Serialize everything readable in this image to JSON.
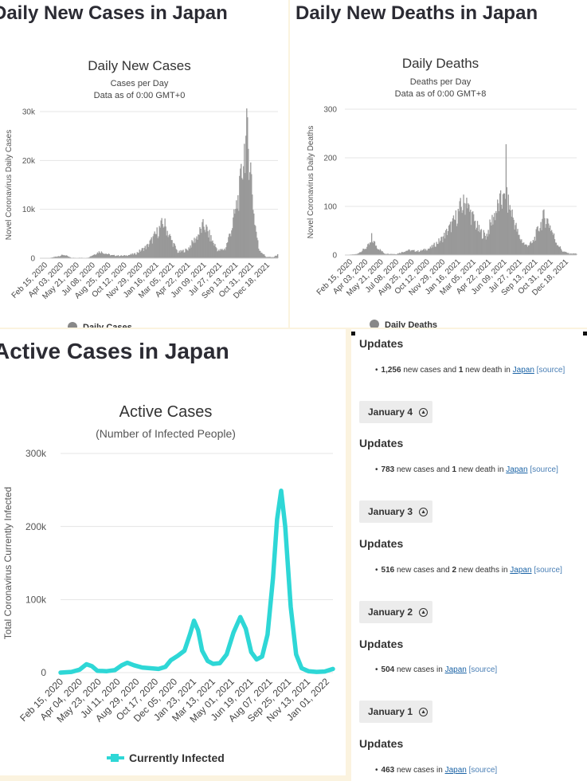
{
  "panels": {
    "cases": {
      "section_title": "Daily New Cases in Japan"
    },
    "deaths": {
      "section_title": "Daily New Deaths in Japan"
    },
    "active": {
      "section_title": "Active Cases in Japan"
    }
  },
  "chart_data": [
    {
      "id": "daily-cases",
      "type": "bar",
      "title": "Daily New Cases",
      "subtitle": [
        "Cases per Day",
        "Data as of 0:00 GMT+0"
      ],
      "ylabel": "Novel Coronavirus Daily Cases",
      "ylim": [
        0,
        30000
      ],
      "y_ticks": [
        "0",
        "10k",
        "20k",
        "30k"
      ],
      "y_tick_values": [
        0,
        10000,
        20000,
        30000
      ],
      "x_ticks": [
        "Feb 15, 2020",
        "Apr 03, 2020",
        "May 21, 2020",
        "Jul 08, 2020",
        "Aug 25, 2020",
        "Oct 12, 2020",
        "Nov 29, 2020",
        "Jan 16, 2021",
        "Mar 05, 2021",
        "Apr 22, 2021",
        "Jun 09, 2021",
        "Jul 27, 2021",
        "Sep 13, 2021",
        "Oct 31, 2021",
        "Dec 18, 2021"
      ],
      "legend": "Daily Cases",
      "color": "#999999",
      "grid": true,
      "anchors": [
        [
          0,
          0
        ],
        [
          0.04,
          50
        ],
        [
          0.1,
          700
        ],
        [
          0.13,
          100
        ],
        [
          0.2,
          100
        ],
        [
          0.25,
          1400
        ],
        [
          0.3,
          600
        ],
        [
          0.35,
          500
        ],
        [
          0.4,
          900
        ],
        [
          0.45,
          2500
        ],
        [
          0.48,
          4500
        ],
        [
          0.52,
          7500
        ],
        [
          0.55,
          4000
        ],
        [
          0.58,
          1200
        ],
        [
          0.62,
          1800
        ],
        [
          0.66,
          4500
        ],
        [
          0.69,
          7000
        ],
        [
          0.72,
          4000
        ],
        [
          0.75,
          1500
        ],
        [
          0.78,
          2000
        ],
        [
          0.81,
          7000
        ],
        [
          0.84,
          14000
        ],
        [
          0.86,
          23000
        ],
        [
          0.87,
          25500
        ],
        [
          0.885,
          20000
        ],
        [
          0.9,
          9000
        ],
        [
          0.92,
          2000
        ],
        [
          0.95,
          300
        ],
        [
          0.98,
          200
        ],
        [
          1,
          700
        ]
      ]
    },
    {
      "id": "daily-deaths",
      "type": "bar",
      "title": "Daily Deaths",
      "subtitle": [
        "Deaths per Day",
        "Data as of 0:00 GMT+8"
      ],
      "ylabel": "Novel Coronavirus Daily Deaths",
      "ylim": [
        0,
        300
      ],
      "y_ticks": [
        "0",
        "100",
        "200",
        "300"
      ],
      "y_tick_values": [
        0,
        100,
        200,
        300
      ],
      "x_ticks": [
        "Feb 15, 2020",
        "Apr 03, 2020",
        "May 21, 2020",
        "Jul 08, 2020",
        "Aug 25, 2020",
        "Oct 12, 2020",
        "Nov 29, 2020",
        "Jan 16, 2021",
        "Mar 05, 2021",
        "Apr 22, 2021",
        "Jun 09, 2021",
        "Jul 27, 2021",
        "Sep 13, 2021",
        "Oct 31, 2021",
        "Dec 18, 2021"
      ],
      "legend": "Daily Deaths",
      "color": "#999999",
      "grid": true,
      "anchors": [
        [
          0,
          0
        ],
        [
          0.05,
          2
        ],
        [
          0.09,
          15
        ],
        [
          0.12,
          30
        ],
        [
          0.14,
          15
        ],
        [
          0.17,
          3
        ],
        [
          0.22,
          2
        ],
        [
          0.27,
          10
        ],
        [
          0.32,
          8
        ],
        [
          0.37,
          15
        ],
        [
          0.42,
          35
        ],
        [
          0.47,
          70
        ],
        [
          0.5,
          100
        ],
        [
          0.52,
          110
        ],
        [
          0.55,
          80
        ],
        [
          0.58,
          50
        ],
        [
          0.61,
          40
        ],
        [
          0.64,
          80
        ],
        [
          0.67,
          110
        ],
        [
          0.7,
          115
        ],
        [
          0.72,
          90
        ],
        [
          0.75,
          40
        ],
        [
          0.78,
          20
        ],
        [
          0.81,
          25
        ],
        [
          0.84,
          60
        ],
        [
          0.86,
          80
        ],
        [
          0.88,
          70
        ],
        [
          0.91,
          30
        ],
        [
          0.94,
          8
        ],
        [
          0.97,
          3
        ],
        [
          1,
          3
        ]
      ],
      "spikes": [
        [
          0.695,
          228
        ],
        [
          0.682,
          125
        ],
        [
          0.525,
          118
        ],
        [
          0.115,
          45
        ]
      ]
    },
    {
      "id": "active-cases",
      "type": "line",
      "title": "Active Cases",
      "subtitle": [
        "(Number of Infected People)"
      ],
      "ylabel": "Total Coronavirus Currently Infected",
      "ylim": [
        0,
        300000
      ],
      "y_ticks": [
        "0",
        "100k",
        "200k",
        "300k"
      ],
      "y_tick_values": [
        0,
        100000,
        200000,
        300000
      ],
      "x_ticks": [
        "Feb 15, 2020",
        "Apr 04, 2020",
        "May 23, 2020",
        "Jul 11, 2020",
        "Aug 29, 2020",
        "Oct 17, 2020",
        "Dec 05, 2020",
        "Jan 23, 2021",
        "Mar 13, 2021",
        "May 01, 2021",
        "Jun 19, 2021",
        "Aug 07, 2021",
        "Sep 25, 2021",
        "Nov 13, 2021",
        "Jan 01, 2022"
      ],
      "legend": "Currently Infected",
      "color": "#2ed7d6",
      "grid": true,
      "series": [
        {
          "name": "Currently Infected",
          "points": [
            [
              0.0,
              0
            ],
            [
              0.04,
              1000
            ],
            [
              0.07,
              4000
            ],
            [
              0.095,
              11500
            ],
            [
              0.115,
              9000
            ],
            [
              0.135,
              2500
            ],
            [
              0.17,
              2000
            ],
            [
              0.2,
              3500
            ],
            [
              0.225,
              10000
            ],
            [
              0.245,
              13500
            ],
            [
              0.27,
              10000
            ],
            [
              0.3,
              7000
            ],
            [
              0.33,
              6000
            ],
            [
              0.36,
              5000
            ],
            [
              0.385,
              8000
            ],
            [
              0.405,
              17000
            ],
            [
              0.43,
              23000
            ],
            [
              0.455,
              30000
            ],
            [
              0.475,
              52000
            ],
            [
              0.49,
              71000
            ],
            [
              0.505,
              58000
            ],
            [
              0.52,
              30000
            ],
            [
              0.54,
              16000
            ],
            [
              0.56,
              12000
            ],
            [
              0.585,
              13000
            ],
            [
              0.61,
              25000
            ],
            [
              0.635,
              55000
            ],
            [
              0.66,
              76000
            ],
            [
              0.68,
              60000
            ],
            [
              0.7,
              28000
            ],
            [
              0.72,
              18000
            ],
            [
              0.74,
              22000
            ],
            [
              0.76,
              52000
            ],
            [
              0.78,
              130000
            ],
            [
              0.795,
              210000
            ],
            [
              0.81,
              249000
            ],
            [
              0.825,
              200000
            ],
            [
              0.845,
              90000
            ],
            [
              0.865,
              25000
            ],
            [
              0.885,
              6000
            ],
            [
              0.91,
              2000
            ],
            [
              0.94,
              1000
            ],
            [
              0.97,
              1500
            ],
            [
              1.0,
              5000
            ]
          ]
        }
      ]
    }
  ],
  "updates": {
    "corner_heading": "Updates",
    "corner_line": {
      "num1": "1,256",
      "t1": " new cases and ",
      "num2": "1",
      "t2": " new death in ",
      "link": "Japan",
      "source": "[source]"
    },
    "days": [
      {
        "date": "January 4",
        "heading": "Updates",
        "num1": "783",
        "t1": " new cases and ",
        "num2": "1",
        "t2": " new death in ",
        "link": "Japan",
        "source": "[source]"
      },
      {
        "date": "January 3",
        "heading": "Updates",
        "num1": "516",
        "t1": " new cases and ",
        "num2": "2",
        "t2": " new deaths in ",
        "link": "Japan",
        "source": "[source]"
      },
      {
        "date": "January 2",
        "heading": "Updates",
        "num1": "504",
        "t1": " new cases in ",
        "num2": "",
        "t2": "",
        "link": "Japan",
        "source": "[source]"
      },
      {
        "date": "January 1",
        "heading": "Updates",
        "num1": "463",
        "t1": " new cases in ",
        "num2": "",
        "t2": "",
        "link": "Japan",
        "source": "[source]"
      }
    ]
  }
}
